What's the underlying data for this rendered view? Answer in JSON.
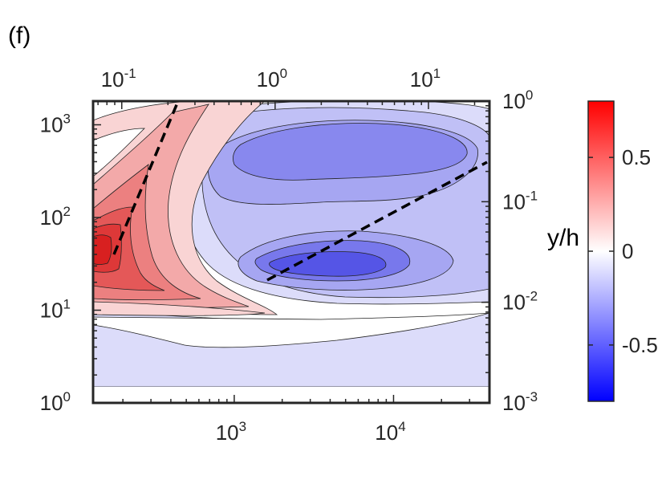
{
  "panel_label": "(f)",
  "chart_data": {
    "type": "heatmap",
    "subtype": "filled-contour",
    "scale": "log-log",
    "bottom_axis": {
      "ticks": [
        {
          "value": 1000,
          "base": "10",
          "exp": "3"
        },
        {
          "value": 10000,
          "base": "10",
          "exp": "4"
        }
      ],
      "range": [
        130,
        40000
      ]
    },
    "left_axis": {
      "ticks": [
        {
          "value": 1,
          "base": "10",
          "exp": "0"
        },
        {
          "value": 10,
          "base": "10",
          "exp": "1"
        },
        {
          "value": 100,
          "base": "10",
          "exp": "2"
        },
        {
          "value": 1000,
          "base": "10",
          "exp": "3"
        }
      ],
      "range": [
        1,
        1800
      ]
    },
    "top_axis": {
      "ticks": [
        {
          "value": 0.1,
          "base": "10",
          "exp": "-1"
        },
        {
          "value": 1,
          "base": "10",
          "exp": "0"
        },
        {
          "value": 10,
          "base": "10",
          "exp": "1"
        }
      ],
      "range": [
        0.065,
        25
      ]
    },
    "right_axis": {
      "label": "y/h",
      "ticks": [
        {
          "value": 0.001,
          "base": "10",
          "exp": "-3"
        },
        {
          "value": 0.01,
          "base": "10",
          "exp": "-2"
        },
        {
          "value": 0.1,
          "base": "10",
          "exp": "-1"
        },
        {
          "value": 1,
          "base": "10",
          "exp": "0"
        }
      ],
      "range": [
        0.001,
        1
      ]
    },
    "colorbar": {
      "colormap": "blue-white-red",
      "range": [
        -0.8,
        0.8
      ],
      "ticks": [
        {
          "value": 0.5,
          "label": "0.5"
        },
        {
          "value": 0,
          "label": "0"
        },
        {
          "value": -0.5,
          "label": "-0.5"
        }
      ]
    },
    "colors": {
      "max": "#ff0000",
      "mid": "#ffffff",
      "min": "#0000ff"
    },
    "contour_levels": [
      -0.7,
      -0.6,
      -0.5,
      -0.4,
      -0.3,
      -0.2,
      -0.1,
      0.1,
      0.2,
      0.3,
      0.4,
      0.5,
      0.6,
      0.7
    ],
    "features": [
      {
        "sign": "positive",
        "peak": 0.7,
        "x": 150,
        "y": 40
      },
      {
        "sign": "negative",
        "peak": -0.6,
        "x": 3500,
        "y": 28
      },
      {
        "sign": "negative",
        "peak": -0.45,
        "x": 4000,
        "y": 400
      }
    ],
    "dashed_lines": [
      {
        "x": [
          150,
          390
        ],
        "y": [
          40,
          1800
        ]
      },
      {
        "x": [
          1700,
          38000
        ],
        "y": [
          20,
          340
        ]
      }
    ]
  }
}
